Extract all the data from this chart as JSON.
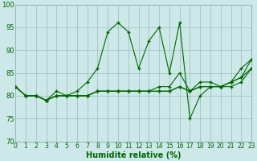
{
  "xlabel": "Humidité relative (%)",
  "xlim": [
    0,
    23
  ],
  "ylim": [
    70,
    100
  ],
  "yticks": [
    70,
    75,
    80,
    85,
    90,
    95,
    100
  ],
  "xticks": [
    0,
    1,
    2,
    3,
    4,
    5,
    6,
    7,
    8,
    9,
    10,
    11,
    12,
    13,
    14,
    15,
    16,
    17,
    18,
    19,
    20,
    21,
    22,
    23
  ],
  "background_color": "#cce8e8",
  "grid_color": "#99bbbb",
  "line_color": "#006600",
  "series": [
    [
      82,
      80,
      80,
      79,
      81,
      80,
      81,
      83,
      86,
      94,
      96,
      94,
      86,
      92,
      95,
      85,
      96,
      75,
      80,
      82,
      82,
      83,
      86,
      88
    ],
    [
      82,
      80,
      80,
      79,
      80,
      80,
      80,
      80,
      81,
      81,
      81,
      81,
      81,
      81,
      81,
      81,
      82,
      81,
      82,
      82,
      82,
      82,
      83,
      86
    ],
    [
      82,
      80,
      80,
      79,
      80,
      80,
      80,
      80,
      81,
      81,
      81,
      81,
      81,
      81,
      81,
      81,
      82,
      81,
      82,
      82,
      82,
      83,
      84,
      86
    ],
    [
      82,
      80,
      80,
      79,
      80,
      80,
      80,
      80,
      81,
      81,
      81,
      81,
      81,
      81,
      82,
      82,
      85,
      81,
      83,
      83,
      82,
      83,
      84,
      88
    ]
  ]
}
